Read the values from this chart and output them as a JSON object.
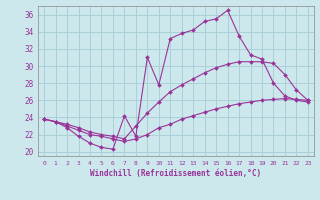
{
  "xlabel": "Windchill (Refroidissement éolien,°C)",
  "background_color": "#cce8ec",
  "grid_color": "#aad0d8",
  "line_color": "#993399",
  "ylim": [
    19.5,
    37.0
  ],
  "xlim": [
    -0.5,
    23.5
  ],
  "yticks": [
    20,
    22,
    24,
    26,
    28,
    30,
    32,
    34,
    36
  ],
  "xticks": [
    0,
    1,
    2,
    3,
    4,
    5,
    6,
    7,
    8,
    9,
    10,
    11,
    12,
    13,
    14,
    15,
    16,
    17,
    18,
    19,
    20,
    21,
    22,
    23
  ],
  "series1_x": [
    0,
    1,
    2,
    3,
    4,
    5,
    6,
    7,
    8,
    9,
    10,
    11,
    12,
    13,
    14,
    15,
    16,
    17,
    18,
    19,
    20,
    21,
    22,
    23
  ],
  "series1_y": [
    23.8,
    23.5,
    22.8,
    21.8,
    21.0,
    20.5,
    20.3,
    24.2,
    21.8,
    31.0,
    27.8,
    33.2,
    33.8,
    34.2,
    35.2,
    35.5,
    36.5,
    33.5,
    31.3,
    30.8,
    28.0,
    26.5,
    26.0,
    25.8
  ],
  "series2_x": [
    0,
    1,
    2,
    3,
    4,
    5,
    6,
    7,
    8,
    9,
    10,
    11,
    12,
    13,
    14,
    15,
    16,
    17,
    18,
    19,
    20,
    21,
    22,
    23
  ],
  "series2_y": [
    23.8,
    23.5,
    23.0,
    22.5,
    22.0,
    21.8,
    21.5,
    21.2,
    21.5,
    22.0,
    22.8,
    23.2,
    23.8,
    24.2,
    24.6,
    25.0,
    25.3,
    25.6,
    25.8,
    26.0,
    26.1,
    26.2,
    26.1,
    26.0
  ],
  "series3_x": [
    0,
    1,
    2,
    3,
    4,
    5,
    6,
    7,
    8,
    9,
    10,
    11,
    12,
    13,
    14,
    15,
    16,
    17,
    18,
    19,
    20,
    21,
    22,
    23
  ],
  "series3_y": [
    23.8,
    23.5,
    23.2,
    22.8,
    22.3,
    22.0,
    21.8,
    21.5,
    23.0,
    24.5,
    25.8,
    27.0,
    27.8,
    28.5,
    29.2,
    29.8,
    30.2,
    30.5,
    30.5,
    30.5,
    30.3,
    29.0,
    27.2,
    26.0
  ]
}
